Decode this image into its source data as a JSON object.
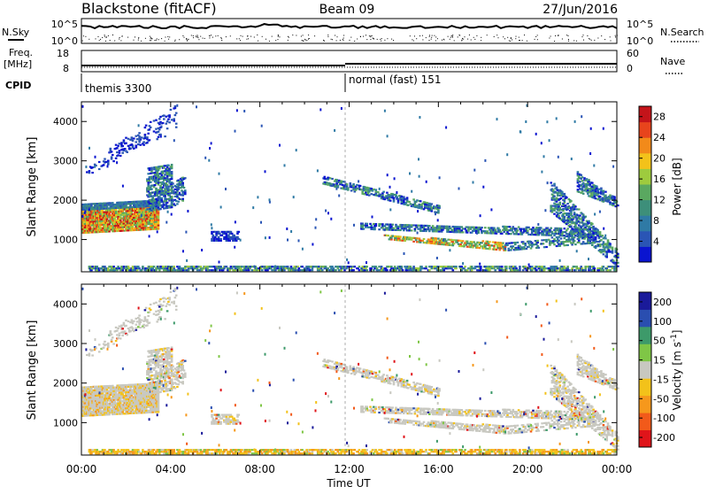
{
  "header": {
    "title": "Blackstone (fitACF)",
    "beam": "Beam 09",
    "date": "27/Jun/2016"
  },
  "noise_panel": {
    "left_label": "N.Sky",
    "right_label": "N.Search",
    "left_ticks": [
      "10^5",
      "10^0"
    ],
    "right_ticks": [
      "10^5",
      "10^0"
    ]
  },
  "freq_panel": {
    "left_label_1": "Freq.",
    "left_label_2": "[MHz]",
    "right_label": "Nave",
    "left_ticks": [
      "18",
      "8"
    ],
    "right_ticks": [
      "60",
      "0"
    ]
  },
  "cpid_panel": {
    "label": "CPID",
    "mode_1": "themis 3300",
    "mode_2": "normal (fast) 151"
  },
  "time_axis": {
    "label": "Time UT",
    "ticks": [
      "00:00",
      "04:00",
      "08:00",
      "12:00",
      "16:00",
      "20:00",
      "00:00"
    ]
  },
  "chart_data": [
    {
      "type": "heatmap",
      "title": "Power",
      "xlabel": "",
      "ylabel": "Slant Range [km]",
      "xlim": [
        0,
        24
      ],
      "ylim": [
        180,
        4500
      ],
      "y_ticks": [
        "1000",
        "2000",
        "3000",
        "4000"
      ],
      "colorbar_label": "Power [dB]",
      "colorbar_ticks": [
        "4",
        "8",
        "12",
        "16",
        "20",
        "24",
        "28"
      ],
      "colorbar_range": [
        0,
        30
      ],
      "colors": [
        "#0a14d0",
        "#2a55b5",
        "#2f7aa5",
        "#3d8f7a",
        "#5aa860",
        "#9ecb3e",
        "#f3c21a",
        "#f28a1a",
        "#e8441c",
        "#c4141a"
      ]
    },
    {
      "type": "heatmap",
      "title": "Velocity",
      "xlabel": "Time UT",
      "ylabel": "Slant Range [km]",
      "xlim": [
        0,
        24
      ],
      "ylim": [
        180,
        4500
      ],
      "y_ticks": [
        "1000",
        "2000",
        "3000",
        "4000"
      ],
      "colorbar_label": "Velocity [m s^-1]",
      "colorbar_ticks": [
        "200",
        "100",
        "50",
        "15",
        "-15",
        "-50",
        "-100",
        "-200"
      ],
      "colorbar_range": [
        -250,
        250
      ],
      "colors": [
        "#e0141a",
        "#f25a1a",
        "#f6981c",
        "#f3c21a",
        "#c8c8c0",
        "#7fc646",
        "#3d9a6a",
        "#2a4eb0",
        "#1a1a9a"
      ]
    }
  ]
}
